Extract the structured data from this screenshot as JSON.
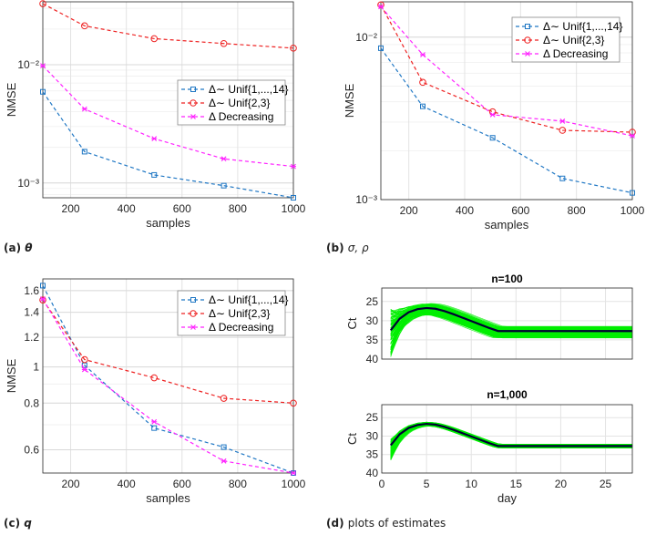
{
  "colors": {
    "blue": "#1f77c4",
    "red": "#ee2222",
    "magenta": "#ff22ff",
    "grid": "#e3e3e3",
    "axis": "#262626",
    "green": "#00ee00",
    "mean": "#000033"
  },
  "legend": [
    "Δ∼ Unif{1,...,14}",
    "Δ∼  Unif{2,3}",
    "Δ Decreasing"
  ],
  "chart_data": [
    {
      "id": "a",
      "type": "line",
      "yscale": "log",
      "xlabel": "samples",
      "ylabel": "NMSE",
      "caption": {
        "tag": "(a)",
        "symbol": "θ"
      },
      "x": [
        100,
        250,
        500,
        750,
        1000
      ],
      "xlim": [
        100,
        1000
      ],
      "xticks": [
        200,
        400,
        600,
        800,
        1000
      ],
      "ylim": [
        0.00075,
        0.034
      ],
      "yticks": [
        0.001,
        0.01
      ],
      "yticklabels": [
        "10⁻³",
        "10⁻²"
      ],
      "legend_position": "center-right",
      "series": [
        {
          "name": "Δ∼ Unif{1,...,14}",
          "color": "blue",
          "marker": "square",
          "values": [
            0.0059,
            0.00184,
            0.00117,
            0.00095,
            0.00075
          ]
        },
        {
          "name": "Δ∼  Unif{2,3}",
          "color": "red",
          "marker": "circle",
          "values": [
            0.0328,
            0.0213,
            0.0166,
            0.0151,
            0.0138
          ]
        },
        {
          "name": "Δ Decreasing",
          "color": "magenta",
          "marker": "x",
          "values": [
            0.0098,
            0.00422,
            0.00237,
            0.0016,
            0.00138
          ]
        }
      ]
    },
    {
      "id": "b",
      "type": "line",
      "yscale": "log",
      "xlabel": "samples",
      "ylabel": "NMSE",
      "caption": {
        "tag": "(b)",
        "symbol": "σ, ρ"
      },
      "x": [
        100,
        250,
        500,
        750,
        1000
      ],
      "xlim": [
        100,
        1000
      ],
      "xticks": [
        200,
        400,
        600,
        800,
        1000
      ],
      "ylim": [
        0.001,
        0.0165
      ],
      "yticks": [
        0.001,
        0.01
      ],
      "yticklabels": [
        "10⁻³",
        "10⁻²"
      ],
      "legend_position": "top-right",
      "series": [
        {
          "name": "Δ∼ Unif{1,...,14}",
          "color": "blue",
          "marker": "square",
          "values": [
            0.00855,
            0.00375,
            0.0024,
            0.00135,
            0.0011
          ]
        },
        {
          "name": "Δ∼  Unif{2,3}",
          "color": "red",
          "marker": "circle",
          "values": [
            0.0158,
            0.00527,
            0.00347,
            0.00267,
            0.0026
          ]
        },
        {
          "name": "Δ Decreasing",
          "color": "magenta",
          "marker": "x",
          "values": [
            0.0154,
            0.0078,
            0.00333,
            0.00304,
            0.00247
          ]
        }
      ]
    },
    {
      "id": "c",
      "type": "line",
      "yscale": "log",
      "xlabel": "samples",
      "ylabel": "NMSE",
      "caption": {
        "tag": "(c)",
        "symbol": "q"
      },
      "x": [
        100,
        250,
        500,
        750,
        1000
      ],
      "xlim": [
        100,
        1000
      ],
      "xticks": [
        200,
        400,
        600,
        800,
        1000
      ],
      "ylim": [
        0.52,
        1.72
      ],
      "yticks": [
        0.6,
        0.8,
        1,
        1.2,
        1.4,
        1.6
      ],
      "yticklabels": [
        "0.6",
        "0.8",
        "1",
        "1.2",
        "1.4",
        "1.6"
      ],
      "legend_position": "top-right",
      "series": [
        {
          "name": "Δ∼ Unif{1,...,14}",
          "color": "blue",
          "marker": "square",
          "values": [
            1.65,
            1.01,
            0.686,
            0.61,
            0.52
          ]
        },
        {
          "name": "Δ∼  Unif{2,3}",
          "color": "red",
          "marker": "circle",
          "values": [
            1.51,
            1.046,
            0.935,
            0.824,
            0.8
          ]
        },
        {
          "name": "Δ Decreasing",
          "color": "magenta",
          "marker": "x",
          "values": [
            1.52,
            0.984,
            0.713,
            0.56,
            0.52
          ]
        }
      ]
    },
    {
      "id": "d",
      "type": "line",
      "xlabel": "day",
      "ylabel": "Ct",
      "caption": {
        "tag": "(d)",
        "symbol": "plots of estimates"
      },
      "xlim": [
        0,
        28
      ],
      "xticks": [
        0,
        5,
        10,
        15,
        20,
        25
      ],
      "ylim": [
        40,
        21.5
      ],
      "yticks": [
        25,
        30,
        35,
        40
      ],
      "y_reversed": true,
      "mean_days": [
        1,
        2,
        3,
        4,
        5,
        6,
        7,
        8,
        9,
        10,
        11,
        12,
        13,
        14,
        28
      ],
      "mean_ct": [
        32.5,
        29.5,
        27.8,
        27,
        26.7,
        26.9,
        27.5,
        28.3,
        29.2,
        30.1,
        31,
        31.9,
        32.7,
        32.7,
        32.7
      ],
      "subplots": [
        {
          "title": "n=100",
          "estimates": 100,
          "day1_range": [
            27,
            39.5
          ],
          "plateau_range": [
            31.5,
            34.5
          ]
        },
        {
          "title": "n=1,000",
          "estimates": 1000,
          "day1_range": [
            31,
            36.5
          ],
          "plateau_range": [
            32.2,
            33.2
          ]
        }
      ]
    }
  ]
}
